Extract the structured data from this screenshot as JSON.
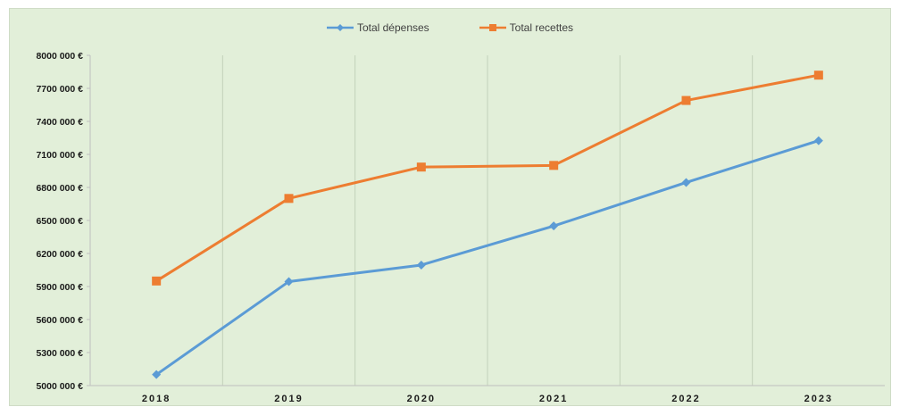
{
  "chart_data": {
    "type": "line",
    "categories": [
      "2018",
      "2019",
      "2020",
      "2021",
      "2022",
      "2023"
    ],
    "series": [
      {
        "name": "Total dépenses",
        "values": [
          5100000,
          5945000,
          6095000,
          6450000,
          6845000,
          7225000
        ],
        "color": "#5b9bd5",
        "marker": "diamond"
      },
      {
        "name": "Total recettes",
        "values": [
          5950000,
          6700000,
          6985000,
          7000000,
          7590000,
          7820000
        ],
        "color": "#ed7d31",
        "marker": "square"
      }
    ],
    "ylim": [
      5000000,
      8000000
    ],
    "yticks": [
      5000000,
      5300000,
      5600000,
      5900000,
      6200000,
      6500000,
      6800000,
      7100000,
      7400000,
      7700000,
      8000000
    ],
    "ytick_labels": [
      "5000 000 €",
      "5300 000 €",
      "5600 000 €",
      "5900 000 €",
      "6200 000 €",
      "6500 000 €",
      "6800 000 €",
      "7100 000 €",
      "7400 000 €",
      "7700 000 €",
      "8000 000 €"
    ],
    "grid": "vertical",
    "legend": "top-center",
    "background": "#e2efd9"
  }
}
